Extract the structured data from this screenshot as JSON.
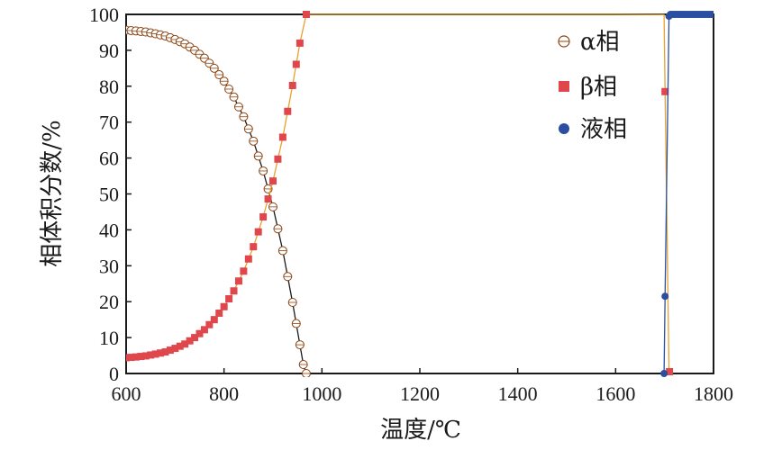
{
  "chart_data": {
    "type": "line",
    "xlabel": "温度/℃",
    "ylabel": "相体积分数/%",
    "xlim": [
      600,
      1800
    ],
    "ylim": [
      0,
      100
    ],
    "xticks": [
      600,
      800,
      1000,
      1200,
      1400,
      1600,
      1800
    ],
    "yticks": [
      0,
      10,
      20,
      30,
      40,
      50,
      60,
      70,
      80,
      90,
      100
    ],
    "grid": false,
    "legend_position": "top-right",
    "series": [
      {
        "name": "α相",
        "marker": "open-circle",
        "color": "#1a1a1a",
        "marker_color": "#8b4513",
        "points": [
          [
            600,
            95.6
          ],
          [
            620,
            95.4
          ],
          [
            640,
            95.1
          ],
          [
            660,
            94.6
          ],
          [
            680,
            94.0
          ],
          [
            700,
            93.0
          ],
          [
            720,
            91.8
          ],
          [
            740,
            90.0
          ],
          [
            760,
            87.8
          ],
          [
            780,
            85.0
          ],
          [
            800,
            81.4
          ],
          [
            820,
            77.0
          ],
          [
            840,
            71.5
          ],
          [
            860,
            64.7
          ],
          [
            880,
            56.4
          ],
          [
            900,
            46.4
          ],
          [
            920,
            34.2
          ],
          [
            940,
            19.8
          ],
          [
            955,
            8.0
          ],
          [
            962,
            2.5
          ],
          [
            968,
            0
          ]
        ]
      },
      {
        "name": "β相",
        "marker": "filled-square",
        "color": "#e8a02e",
        "marker_color": "#e0474c",
        "points": [
          [
            600,
            4.4
          ],
          [
            620,
            4.6
          ],
          [
            640,
            4.9
          ],
          [
            660,
            5.4
          ],
          [
            680,
            6.0
          ],
          [
            700,
            7.0
          ],
          [
            720,
            8.2
          ],
          [
            740,
            10.0
          ],
          [
            760,
            12.2
          ],
          [
            780,
            15.0
          ],
          [
            800,
            18.6
          ],
          [
            820,
            23.0
          ],
          [
            840,
            28.5
          ],
          [
            860,
            35.3
          ],
          [
            880,
            43.6
          ],
          [
            900,
            53.6
          ],
          [
            920,
            65.8
          ],
          [
            940,
            80.2
          ],
          [
            955,
            92.0
          ],
          [
            968,
            100
          ],
          [
            1000,
            100
          ],
          [
            1200,
            100
          ],
          [
            1400,
            100
          ],
          [
            1600,
            100
          ],
          [
            1699,
            99.9
          ],
          [
            1701,
            78.5
          ],
          [
            1709,
            0.5
          ],
          [
            1712,
            0
          ]
        ]
      },
      {
        "name": "液相",
        "marker": "filled-circle",
        "color": "#2a4fa0",
        "marker_color": "#2a4fa0",
        "points": [
          [
            1699,
            0
          ],
          [
            1701,
            21.5
          ],
          [
            1709,
            99.5
          ],
          [
            1712,
            100
          ],
          [
            1720,
            100
          ],
          [
            1740,
            100
          ],
          [
            1760,
            100
          ],
          [
            1780,
            100
          ],
          [
            1800,
            100
          ]
        ]
      }
    ]
  }
}
